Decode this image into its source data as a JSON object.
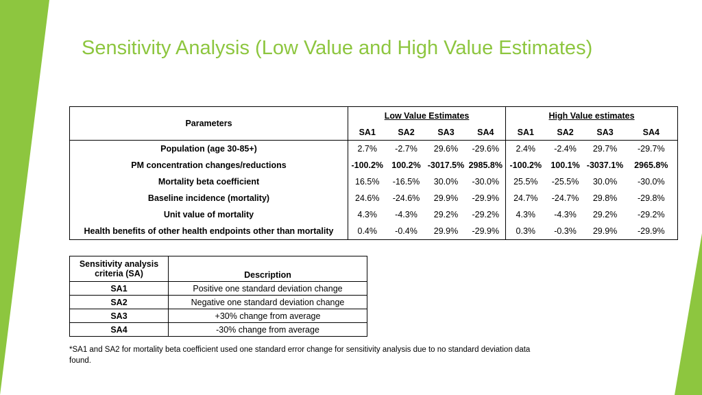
{
  "title": "Sensitivity Analysis (Low Value and High Value Estimates)",
  "main_table": {
    "parameters_header": "Parameters",
    "low_header": "Low Value Estimates",
    "high_header": "High Value estimates",
    "sub_headers": [
      "SA1",
      "SA2",
      "SA3",
      "SA4",
      "SA1",
      "SA2",
      "SA3",
      "SA4"
    ],
    "rows": [
      {
        "label": "Population (age 30-85+)",
        "values": [
          "2.7%",
          "-2.7%",
          "29.6%",
          "-29.6%",
          "2.4%",
          "-2.4%",
          "29.7%",
          "-29.7%"
        ]
      },
      {
        "label": "PM concentration changes/reductions",
        "values": [
          "-100.2%",
          "100.2%",
          "-3017.5%",
          "2985.8%",
          "-100.2%",
          "100.1%",
          "-3037.1%",
          "2965.8%"
        ]
      },
      {
        "label": "Mortality beta coefficient",
        "values": [
          "16.5%",
          "-16.5%",
          "30.0%",
          "-30.0%",
          "25.5%",
          "-25.5%",
          "30.0%",
          "-30.0%"
        ]
      },
      {
        "label": "Baseline incidence (mortality)",
        "values": [
          "24.6%",
          "-24.6%",
          "29.9%",
          "-29.9%",
          "24.7%",
          "-24.7%",
          "29.8%",
          "-29.8%"
        ]
      },
      {
        "label": "Unit value of mortality",
        "values": [
          "4.3%",
          "-4.3%",
          "29.2%",
          "-29.2%",
          "4.3%",
          "-4.3%",
          "29.2%",
          "-29.2%"
        ]
      },
      {
        "label": "Health benefits of other health endpoints other than mortality",
        "values": [
          "0.4%",
          "-0.4%",
          "29.9%",
          "-29.9%",
          "0.3%",
          "-0.3%",
          "29.9%",
          "-29.9%"
        ]
      }
    ]
  },
  "criteria_table": {
    "header_code": "Sensitivity analysis criteria (SA)",
    "header_desc": "Description",
    "rows": [
      {
        "code": "SA1",
        "desc": "Positive one standard deviation change"
      },
      {
        "code": "SA2",
        "desc": "Negative one standard deviation change"
      },
      {
        "code": "SA3",
        "desc": "+30% change from average"
      },
      {
        "code": "SA4",
        "desc": "-30% change from average"
      }
    ]
  },
  "footnote": "*SA1 and SA2 for mortality beta coefficient used one standard error change for sensitivity analysis due to no standard deviation data found.",
  "colors": {
    "accent": "#8DC63F"
  }
}
